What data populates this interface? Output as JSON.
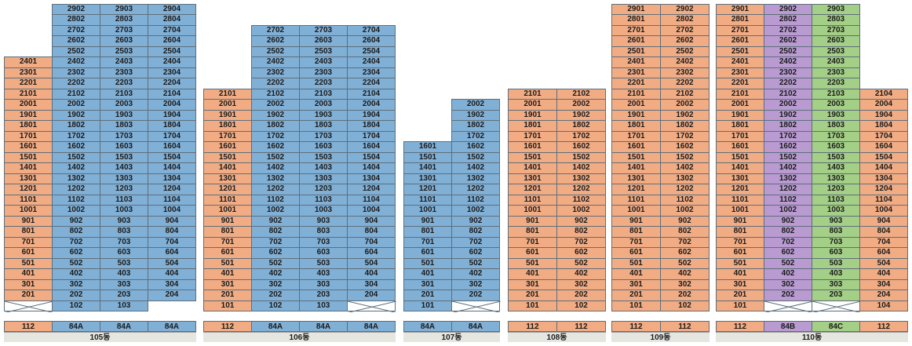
{
  "colors": {
    "orange": "#f2ac84",
    "blue": "#81b0d6",
    "purple": "#b99bd1",
    "green": "#a4cf86"
  },
  "buildings": [
    {
      "name": "105동",
      "columns": [
        {
          "line": "01",
          "type": "112",
          "color": "orange",
          "top": 24,
          "bottom": 2,
          "empty_bottom": true
        },
        {
          "line": "02",
          "type": "84A",
          "color": "blue",
          "top": 29,
          "bottom": 1,
          "empty_bottom": false
        },
        {
          "line": "03",
          "type": "84A",
          "color": "blue",
          "top": 29,
          "bottom": 1,
          "empty_bottom": false
        },
        {
          "line": "04",
          "type": "84A",
          "color": "blue",
          "top": 29,
          "bottom": 2,
          "empty_bottom": false
        }
      ]
    },
    {
      "name": "106동",
      "columns": [
        {
          "line": "01",
          "type": "112",
          "color": "orange",
          "top": 21,
          "bottom": 1,
          "empty_bottom": false
        },
        {
          "line": "02",
          "type": "84A",
          "color": "blue",
          "top": 27,
          "bottom": 1,
          "empty_bottom": false
        },
        {
          "line": "03",
          "type": "84A",
          "color": "blue",
          "top": 27,
          "bottom": 1,
          "empty_bottom": false
        },
        {
          "line": "04",
          "type": "84A",
          "color": "blue",
          "top": 27,
          "bottom": 2,
          "empty_bottom": true
        }
      ]
    },
    {
      "name": "107동",
      "columns": [
        {
          "line": "01",
          "type": "84A",
          "color": "blue",
          "top": 16,
          "bottom": 1,
          "empty_bottom": false
        },
        {
          "line": "02",
          "type": "84A",
          "color": "blue",
          "top": 20,
          "bottom": 2,
          "empty_bottom": true
        }
      ]
    },
    {
      "name": "108동",
      "columns": [
        {
          "line": "01",
          "type": "112",
          "color": "orange",
          "top": 21,
          "bottom": 1,
          "empty_bottom": false
        },
        {
          "line": "02",
          "type": "112",
          "color": "orange",
          "top": 21,
          "bottom": 1,
          "empty_bottom": false
        }
      ]
    },
    {
      "name": "109동",
      "columns": [
        {
          "line": "01",
          "type": "112",
          "color": "orange",
          "top": 29,
          "bottom": 1,
          "empty_bottom": false
        },
        {
          "line": "02",
          "type": "112",
          "color": "orange",
          "top": 29,
          "bottom": 1,
          "empty_bottom": false
        }
      ]
    },
    {
      "name": "110동",
      "columns": [
        {
          "line": "01",
          "type": "112",
          "color": "orange",
          "top": 29,
          "bottom": 1,
          "empty_bottom": false
        },
        {
          "line": "02",
          "type": "84B",
          "color": "purple",
          "top": 29,
          "bottom": 2,
          "empty_bottom": true
        },
        {
          "line": "03",
          "type": "84C",
          "color": "green",
          "top": 29,
          "bottom": 2,
          "empty_bottom": true
        },
        {
          "line": "04",
          "type": "112",
          "color": "orange",
          "top": 21,
          "bottom": 1,
          "empty_bottom": false
        }
      ]
    }
  ]
}
